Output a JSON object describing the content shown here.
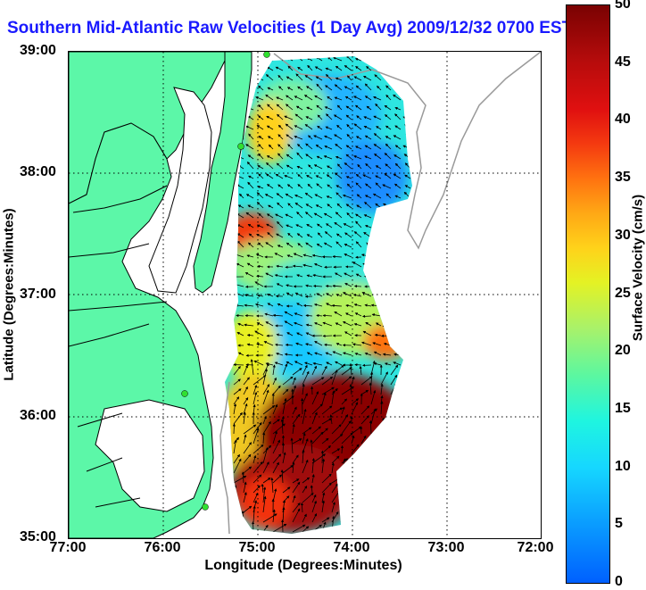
{
  "title": "Southern Mid-Atlantic Raw Velocities (1 Day Avg) 2009/12/32 0700 EST",
  "x_axis": {
    "label": "Longitude (Degrees:Minutes)",
    "ticks": [
      "77:00",
      "76:00",
      "75:00",
      "74:00",
      "73:00",
      "72:00"
    ],
    "range": [
      -77,
      -72
    ]
  },
  "y_axis": {
    "label": "Latitude (Degrees:Minutes)",
    "ticks": [
      "35:00",
      "36:00",
      "37:00",
      "38:00",
      "39:00"
    ],
    "range": [
      35,
      39
    ]
  },
  "colorbar": {
    "label": "Surface Velocity (cm/s)",
    "ticks": [
      "0",
      "5",
      "10",
      "15",
      "20",
      "25",
      "30",
      "35",
      "40",
      "45",
      "50"
    ],
    "range": [
      0,
      50
    ]
  },
  "colors": {
    "land": "#5cf7a8",
    "coast": "#000000",
    "grid": "#000000",
    "title": "#1a1aff",
    "bathymetry": "#9a9a9a"
  },
  "grid": true
}
